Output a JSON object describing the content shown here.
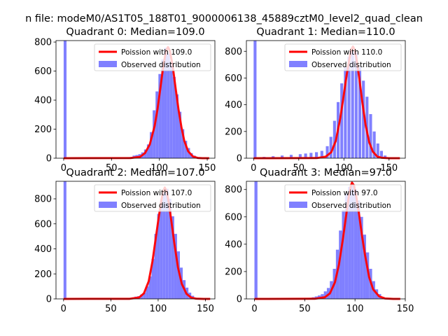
{
  "suptitle": "n file: modeM0/AS1T05_188T01_9000006138_45889cztM0_level2_quad_clean",
  "colors": {
    "poisson": "#ff0000",
    "observed": "#8080ff",
    "axis": "#000000"
  },
  "chart_data": [
    {
      "type": "bar",
      "title": "Quadrant 0: Median=109.0",
      "xlabel": "",
      "ylabel": "",
      "xlim": [
        -8,
        158
      ],
      "ylim": [
        0,
        810
      ],
      "xticks": [
        0,
        50,
        100,
        150
      ],
      "yticks": [
        0,
        200,
        400,
        600,
        800
      ],
      "grid": false,
      "legend_position": "top-right",
      "series": [
        {
          "name": "Poission with 109.0",
          "kind": "line",
          "mean": 109.0,
          "x": [
            0,
            70,
            80,
            85,
            90,
            95,
            98,
            101,
            104,
            107,
            109,
            111,
            114,
            117,
            120,
            123,
            126,
            130,
            135,
            140,
            145,
            152
          ],
          "y": [
            0,
            1,
            10,
            35,
            95,
            220,
            335,
            480,
            630,
            740,
            765,
            740,
            630,
            480,
            335,
            215,
            120,
            48,
            12,
            2,
            0,
            0
          ]
        },
        {
          "name": "Observed distribution",
          "kind": "histogram",
          "bin_width": 3,
          "bins": [
            0,
            66,
            69,
            72,
            75,
            78,
            81,
            84,
            87,
            90,
            93,
            96,
            99,
            102,
            105,
            108,
            111,
            114,
            117,
            120,
            123,
            126,
            129,
            132,
            135,
            138,
            141
          ],
          "counts": [
            810,
            5,
            8,
            18,
            22,
            28,
            40,
            60,
            95,
            180,
            330,
            460,
            580,
            680,
            760,
            720,
            660,
            560,
            440,
            320,
            200,
            120,
            70,
            35,
            18,
            8,
            3
          ]
        }
      ]
    },
    {
      "type": "bar",
      "title": "Quadrant 1: Median=110.0",
      "xlabel": "",
      "ylabel": "",
      "xlim": [
        -8,
        168
      ],
      "ylim": [
        0,
        880
      ],
      "xticks": [
        0,
        50,
        100,
        150
      ],
      "yticks": [
        0,
        200,
        400,
        600,
        800
      ],
      "grid": false,
      "legend_position": "top-right",
      "series": [
        {
          "name": "Poission with 110.0",
          "kind": "line",
          "mean": 110.0,
          "x": [
            0,
            70,
            80,
            86,
            91,
            96,
            100,
            103,
            106,
            108,
            110,
            112,
            114,
            117,
            120,
            124,
            128,
            132,
            137,
            142,
            150,
            162
          ],
          "y": [
            0,
            1,
            12,
            45,
            130,
            300,
            480,
            620,
            740,
            810,
            835,
            810,
            740,
            600,
            440,
            250,
            120,
            50,
            12,
            3,
            0,
            0
          ]
        },
        {
          "name": "Observed distribution",
          "kind": "histogram",
          "bin_width": 3.2,
          "bins": [
            0,
            10,
            20,
            30,
            40,
            50,
            56,
            62,
            68,
            74,
            80,
            84,
            88,
            92,
            96,
            100,
            104,
            108,
            112,
            116,
            120,
            124,
            128,
            132,
            136,
            140,
            144,
            148,
            152
          ],
          "counts": [
            880,
            10,
            15,
            20,
            25,
            30,
            35,
            40,
            45,
            55,
            90,
            160,
            280,
            420,
            560,
            680,
            760,
            800,
            790,
            680,
            580,
            460,
            330,
            200,
            110,
            55,
            20,
            8,
            3
          ]
        }
      ]
    },
    {
      "type": "bar",
      "title": "Quadrant 2: Median=107.0",
      "xlabel": "",
      "ylabel": "",
      "xlim": [
        -8,
        160
      ],
      "ylim": [
        0,
        940
      ],
      "xticks": [
        0,
        50,
        100,
        150
      ],
      "yticks": [
        0,
        200,
        400,
        600,
        800
      ],
      "grid": false,
      "legend_position": "top-right",
      "series": [
        {
          "name": "Poission with 107.0",
          "kind": "line",
          "mean": 107.0,
          "x": [
            0,
            70,
            80,
            85,
            90,
            94,
            97,
            100,
            103,
            105,
            107,
            109,
            111,
            114,
            117,
            121,
            125,
            130,
            135,
            140,
            148,
            155
          ],
          "y": [
            0,
            1,
            12,
            45,
            140,
            300,
            460,
            620,
            770,
            850,
            890,
            860,
            780,
            620,
            450,
            250,
            120,
            40,
            10,
            2,
            0,
            0
          ]
        },
        {
          "name": "Observed distribution",
          "kind": "histogram",
          "bin_width": 3,
          "bins": [
            0,
            66,
            69,
            72,
            75,
            78,
            81,
            84,
            87,
            90,
            93,
            96,
            99,
            102,
            105,
            108,
            111,
            114,
            117,
            120,
            123,
            126,
            129,
            132,
            135,
            138,
            141
          ],
          "counts": [
            940,
            4,
            8,
            12,
            18,
            22,
            35,
            50,
            100,
            180,
            320,
            520,
            680,
            790,
            850,
            880,
            800,
            660,
            520,
            380,
            250,
            150,
            90,
            50,
            25,
            10,
            4
          ]
        }
      ]
    },
    {
      "type": "bar",
      "title": "Quadrant 3: Median=97.0",
      "xlabel": "",
      "ylabel": "",
      "xlim": [
        -8,
        150
      ],
      "ylim": [
        0,
        860
      ],
      "xticks": [
        0,
        50,
        100,
        150
      ],
      "yticks": [
        0,
        200,
        400,
        600,
        800
      ],
      "grid": false,
      "legend_position": "top-right",
      "series": [
        {
          "name": "Poission with 97.0",
          "kind": "line",
          "mean": 97.0,
          "x": [
            0,
            60,
            70,
            75,
            80,
            84,
            88,
            91,
            94,
            96,
            97,
            99,
            101,
            104,
            107,
            110,
            114,
            118,
            124,
            130,
            138,
            145
          ],
          "y": [
            0,
            1,
            12,
            40,
            120,
            250,
            440,
            600,
            760,
            830,
            850,
            830,
            760,
            620,
            460,
            320,
            160,
            70,
            18,
            3,
            0,
            0
          ]
        },
        {
          "name": "Observed distribution",
          "kind": "histogram",
          "bin_width": 3,
          "bins": [
            0,
            51,
            54,
            57,
            60,
            63,
            66,
            69,
            72,
            75,
            78,
            81,
            84,
            87,
            90,
            93,
            96,
            99,
            102,
            105,
            108,
            111,
            114,
            117,
            120,
            123,
            126,
            129,
            132
          ],
          "counts": [
            860,
            4,
            8,
            12,
            18,
            25,
            35,
            55,
            80,
            130,
            220,
            360,
            500,
            650,
            770,
            820,
            830,
            800,
            720,
            600,
            470,
            340,
            220,
            130,
            70,
            35,
            15,
            6,
            2
          ]
        }
      ]
    }
  ]
}
